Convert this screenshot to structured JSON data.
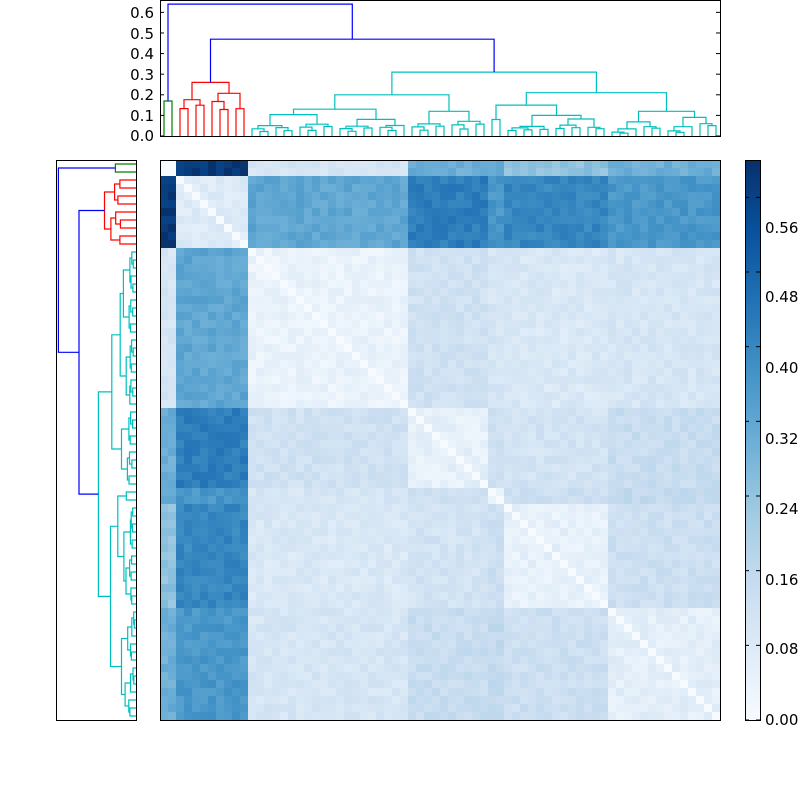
{
  "chart_data": [
    {
      "type": "heatmap",
      "title": "",
      "n": 70,
      "colormap": "Blues",
      "vmin": 0.0,
      "vmax": 0.6,
      "grid": false,
      "cluster_boundaries": [
        0,
        2,
        11,
        31,
        41,
        43,
        56,
        70
      ],
      "cluster_sizes": [
        2,
        9,
        20,
        10,
        2,
        13,
        14
      ],
      "block_values": [
        [
          0.0,
          0.58,
          0.1,
          0.3,
          0.32,
          0.25,
          0.3
        ],
        [
          0.58,
          0.08,
          0.32,
          0.42,
          0.36,
          0.4,
          0.36
        ],
        [
          0.1,
          0.32,
          0.04,
          0.12,
          0.1,
          0.09,
          0.1
        ],
        [
          0.3,
          0.42,
          0.12,
          0.05,
          0.12,
          0.11,
          0.14
        ],
        [
          0.32,
          0.36,
          0.1,
          0.12,
          0.03,
          0.13,
          0.15
        ],
        [
          0.25,
          0.4,
          0.09,
          0.11,
          0.13,
          0.05,
          0.13
        ],
        [
          0.3,
          0.36,
          0.1,
          0.14,
          0.15,
          0.13,
          0.06
        ]
      ]
    },
    {
      "type": "dendrogram",
      "orientation": "top",
      "yticks": [
        "0.0",
        "0.1",
        "0.2",
        "0.3",
        "0.4",
        "0.5",
        "0.6"
      ],
      "ylim": [
        0,
        0.66
      ],
      "link_heights": {
        "root": 0.64,
        "left_main": 0.47,
        "cyan_root": 0.31,
        "red_root": 0.26,
        "green_root": 0.17
      },
      "colors": {
        "green": "#008000",
        "red": "#ff0000",
        "cyan": "#00bfbf",
        "blue": "#0000ff"
      }
    },
    {
      "type": "dendrogram",
      "orientation": "left",
      "mirrors": "top",
      "colors": {
        "green": "#008000",
        "red": "#ff0000",
        "cyan": "#00bfbf",
        "blue": "#0000ff"
      }
    },
    {
      "type": "colorbar",
      "ticks": [
        "0.00",
        "0.08",
        "0.16",
        "0.24",
        "0.32",
        "0.40",
        "0.48",
        "0.56"
      ],
      "range": [
        0.0,
        0.6
      ]
    }
  ]
}
